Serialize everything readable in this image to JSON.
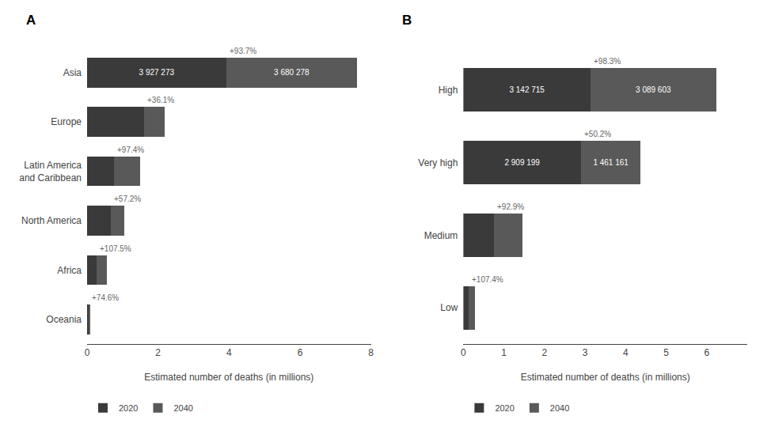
{
  "chart_data": [
    {
      "type": "bar",
      "title": "A",
      "orientation": "horizontal",
      "stacked": true,
      "categories": [
        "Asia",
        "Europe",
        "Latin America\nand Caribbean",
        "North America",
        "Africa",
        "Oceania"
      ],
      "series": [
        {
          "name": "2020",
          "color": "#3a3a3a",
          "values": [
            3.927273,
            1.607,
            0.753,
            0.66,
            0.267,
            0.055
          ],
          "value_labels": [
            "3 927 273",
            null,
            null,
            null,
            null,
            null
          ]
        },
        {
          "name": "2040",
          "color": "#595959",
          "values": [
            3.680278,
            0.581,
            0.733,
            0.378,
            0.286,
            0.041
          ],
          "value_labels": [
            "3 680 278",
            null,
            null,
            null,
            null,
            null
          ]
        }
      ],
      "annotations": [
        {
          "category": "Asia",
          "text": "+93.7%"
        },
        {
          "category": "Europe",
          "text": "+36.1%"
        },
        {
          "category": "Latin America\nand Caribbean",
          "text": "+97.4%"
        },
        {
          "category": "North America",
          "text": "+57.2%"
        },
        {
          "category": "Africa",
          "text": "+107.5%"
        },
        {
          "category": "Oceania",
          "text": "+74.6%"
        }
      ],
      "xlabel": "Estimated number of deaths (in millions)",
      "xlim": [
        0,
        8
      ],
      "xticks": [
        0,
        2,
        4,
        6,
        8
      ],
      "grid": false,
      "data_labels": true,
      "legend": "bottom"
    },
    {
      "type": "bar",
      "title": "B",
      "orientation": "horizontal",
      "stacked": true,
      "categories": [
        "High",
        "Very high",
        "Medium",
        "Low"
      ],
      "series": [
        {
          "name": "2020",
          "color": "#3a3a3a",
          "values": [
            3.142715,
            2.909199,
            0.76,
            0.138
          ],
          "value_labels": [
            "3 142 715",
            "2 909 199",
            null,
            null
          ]
        },
        {
          "name": "2040",
          "color": "#595959",
          "values": [
            3.089603,
            1.461161,
            0.706,
            0.148
          ],
          "value_labels": [
            "3 089 603",
            "1 461 161",
            null,
            null
          ]
        }
      ],
      "annotations": [
        {
          "category": "High",
          "text": "+98.3%"
        },
        {
          "category": "Very high",
          "text": "+50.2%"
        },
        {
          "category": "Medium",
          "text": "+92.9%"
        },
        {
          "category": "Low",
          "text": "+107.4%"
        }
      ],
      "xlabel": "Estimated number of deaths (in millions)",
      "xlim": [
        0,
        7
      ],
      "xticks": [
        0,
        1,
        2,
        3,
        4,
        5,
        6
      ],
      "grid": false,
      "data_labels": true,
      "legend": "bottom"
    }
  ]
}
